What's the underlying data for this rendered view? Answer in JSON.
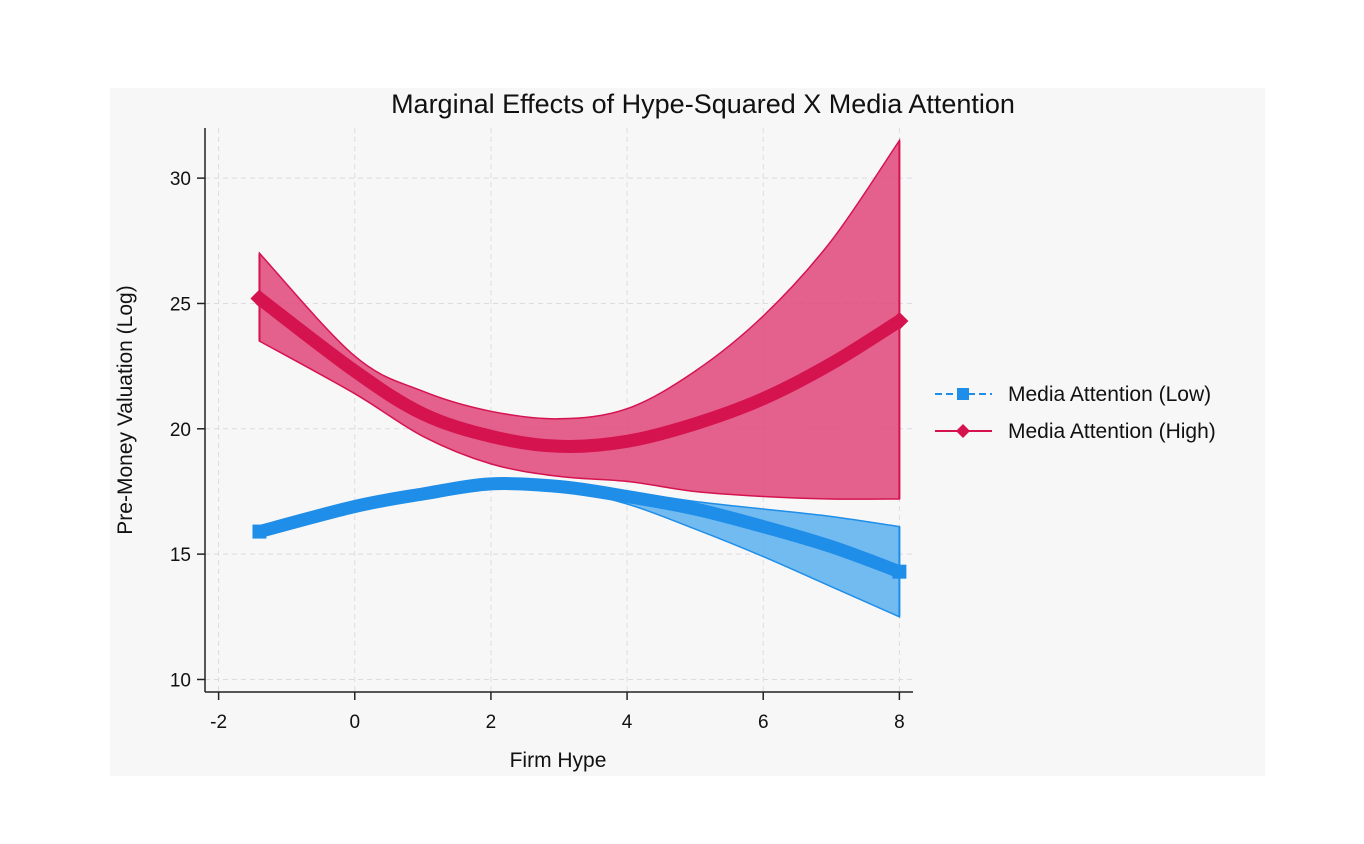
{
  "chart_data": {
    "type": "line",
    "title": "Marginal Effects of Hype-Squared X Media Attention",
    "xlabel": "Firm Hype",
    "ylabel": "Pre-Money Valuation (Log)",
    "xlim": [
      -2.2,
      8.2
    ],
    "ylim": [
      9.5,
      32
    ],
    "xticks": [
      -2,
      0,
      2,
      4,
      6,
      8
    ],
    "yticks": [
      10,
      15,
      20,
      25,
      30
    ],
    "xtick_labels": [
      "-2",
      "0",
      "2",
      "4",
      "6",
      "8"
    ],
    "ytick_labels": [
      "10",
      "15",
      "20",
      "25",
      "30"
    ],
    "grid": true,
    "legend_position": "right",
    "x": [
      -1.4,
      0,
      1,
      2,
      3,
      4,
      5,
      6,
      7,
      8
    ],
    "series": [
      {
        "name": "Media Attention (Low)",
        "color": "#1f8ee8",
        "band_color": "#5ab0f0",
        "marker": "square",
        "line_style": "dashed",
        "values": [
          15.9,
          16.9,
          17.4,
          17.8,
          17.7,
          17.3,
          16.8,
          16.1,
          15.3,
          14.3
        ],
        "ci_lower": [
          15.8,
          16.8,
          17.3,
          17.7,
          17.6,
          17.0,
          16.0,
          14.9,
          13.7,
          12.5
        ],
        "ci_upper": [
          16.0,
          17.0,
          17.5,
          17.9,
          17.8,
          17.5,
          17.1,
          16.8,
          16.5,
          16.1
        ]
      },
      {
        "name": "Media Attention (High)",
        "color": "#d5134f",
        "band_color": "#e0457a",
        "marker": "diamond",
        "line_style": "solid",
        "values": [
          25.2,
          22.3,
          20.6,
          19.7,
          19.3,
          19.5,
          20.2,
          21.2,
          22.6,
          24.3
        ],
        "ci_lower": [
          23.5,
          21.4,
          19.7,
          18.6,
          18.1,
          17.9,
          17.5,
          17.3,
          17.2,
          17.2
        ],
        "ci_upper": [
          27.0,
          22.9,
          21.5,
          20.7,
          20.4,
          20.8,
          22.3,
          24.5,
          27.5,
          31.5
        ]
      }
    ]
  }
}
